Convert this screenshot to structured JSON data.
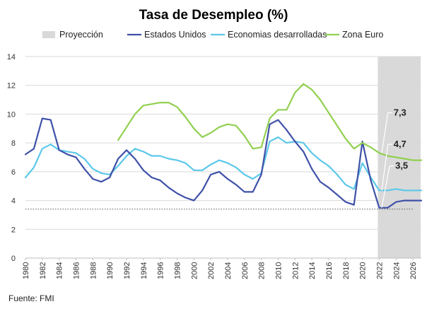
{
  "chart_data": {
    "type": "line",
    "title": "Tasa de Desempleo (%)",
    "source": "Fuente:  FMI",
    "xlim": [
      1980,
      2027
    ],
    "ylim": [
      0,
      14
    ],
    "yticks": [
      0,
      2,
      4,
      6,
      8,
      10,
      12,
      14
    ],
    "xticks": [
      1980,
      1982,
      1984,
      1986,
      1988,
      1990,
      1992,
      1994,
      1996,
      1998,
      2000,
      2002,
      2004,
      2006,
      2008,
      2010,
      2012,
      2014,
      2016,
      2018,
      2020,
      2022,
      2024,
      2026
    ],
    "grid": "horizontal",
    "legend_position": "top",
    "projection": {
      "name": "Proyección",
      "from": 2022,
      "to": 2027,
      "color": "#d9d9d9"
    },
    "reference_line": {
      "value": 3.4,
      "from": 1980,
      "to": 2026,
      "style": "dotted",
      "color": "#555555"
    },
    "series": [
      {
        "name": "Estados Unidos",
        "color": "#3f51a8",
        "x": [
          1980,
          1981,
          1982,
          1983,
          1984,
          1985,
          1986,
          1987,
          1988,
          1989,
          1990,
          1991,
          1992,
          1993,
          1994,
          1995,
          1996,
          1997,
          1998,
          1999,
          2000,
          2001,
          2002,
          2003,
          2004,
          2005,
          2006,
          2007,
          2008,
          2009,
          2010,
          2011,
          2012,
          2013,
          2014,
          2015,
          2016,
          2017,
          2018,
          2019,
          2020,
          2021,
          2022,
          2023,
          2024,
          2025,
          2026,
          2027
        ],
        "values": [
          7.2,
          7.6,
          9.7,
          9.6,
          7.5,
          7.2,
          7.0,
          6.2,
          5.5,
          5.3,
          5.6,
          6.9,
          7.5,
          6.9,
          6.1,
          5.6,
          5.4,
          4.9,
          4.5,
          4.2,
          4.0,
          4.7,
          5.8,
          6.0,
          5.5,
          5.1,
          4.6,
          4.6,
          5.8,
          9.3,
          9.6,
          8.9,
          8.1,
          7.4,
          6.2,
          5.3,
          4.9,
          4.4,
          3.9,
          3.7,
          8.1,
          5.4,
          3.5,
          3.5,
          3.9,
          4.0,
          4.0,
          4.0
        ]
      },
      {
        "name": "Economias desarrolladas",
        "color": "#5bc8ea",
        "x": [
          1980,
          1981,
          1982,
          1983,
          1984,
          1985,
          1986,
          1987,
          1988,
          1989,
          1990,
          1991,
          1992,
          1993,
          1994,
          1995,
          1996,
          1997,
          1998,
          1999,
          2000,
          2001,
          2002,
          2003,
          2004,
          2005,
          2006,
          2007,
          2008,
          2009,
          2010,
          2011,
          2012,
          2013,
          2014,
          2015,
          2016,
          2017,
          2018,
          2019,
          2020,
          2021,
          2022,
          2023,
          2024,
          2025,
          2026,
          2027
        ],
        "values": [
          5.6,
          6.3,
          7.6,
          7.9,
          7.5,
          7.4,
          7.3,
          6.9,
          6.2,
          5.9,
          5.8,
          6.4,
          7.1,
          7.6,
          7.4,
          7.1,
          7.1,
          6.9,
          6.8,
          6.6,
          6.1,
          6.1,
          6.5,
          6.8,
          6.6,
          6.3,
          5.8,
          5.5,
          5.9,
          8.1,
          8.4,
          8.0,
          8.1,
          8.0,
          7.3,
          6.8,
          6.4,
          5.8,
          5.1,
          4.8,
          6.6,
          5.6,
          4.7,
          4.7,
          4.8,
          4.7,
          4.7,
          4.7
        ]
      },
      {
        "name": "Zona Euro",
        "color": "#92d050",
        "x": [
          1991,
          1992,
          1993,
          1994,
          1995,
          1996,
          1997,
          1998,
          1999,
          2000,
          2001,
          2002,
          2003,
          2004,
          2005,
          2006,
          2007,
          2008,
          2009,
          2010,
          2011,
          2012,
          2013,
          2014,
          2015,
          2016,
          2017,
          2018,
          2019,
          2020,
          2021,
          2022,
          2023,
          2024,
          2025,
          2026,
          2027
        ],
        "values": [
          8.2,
          9.1,
          10.0,
          10.6,
          10.7,
          10.8,
          10.8,
          10.5,
          9.8,
          9.0,
          8.4,
          8.7,
          9.1,
          9.3,
          9.2,
          8.5,
          7.6,
          7.7,
          9.7,
          10.3,
          10.3,
          11.5,
          12.1,
          11.7,
          11.0,
          10.1,
          9.2,
          8.3,
          7.6,
          8.0,
          7.7,
          7.3,
          7.1,
          7.0,
          6.9,
          6.8,
          6.8
        ]
      }
    ],
    "annotations": [
      {
        "text": "7,3",
        "point": [
          2022.3,
          7.3
        ],
        "label_at": [
          2023.2,
          10.3
        ]
      },
      {
        "text": "4,7",
        "point": [
          2022.3,
          4.7
        ],
        "label_at": [
          2023.2,
          8.1
        ]
      },
      {
        "text": "3,5",
        "point": [
          2022.3,
          3.5
        ],
        "label_at": [
          2023.4,
          6.6
        ]
      }
    ]
  }
}
